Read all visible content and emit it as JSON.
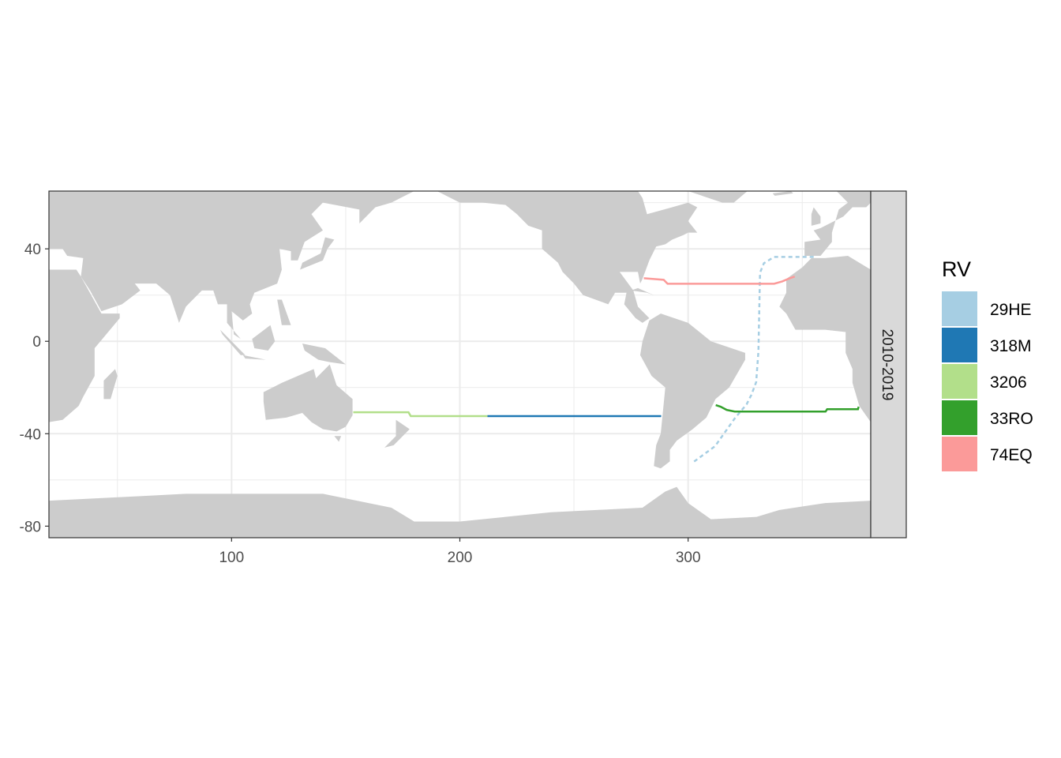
{
  "chart_data": {
    "type": "map",
    "xlim": [
      20,
      380
    ],
    "ylim": [
      -85,
      65
    ],
    "x_ticks": [
      100,
      200,
      300
    ],
    "y_ticks": [
      40,
      0,
      -40,
      -80
    ],
    "x_tick_labels": [
      "100",
      "200",
      "300"
    ],
    "y_tick_labels": [
      "40",
      "0",
      "-40",
      "-80"
    ],
    "grid": true,
    "facet_label": "2010-2019",
    "land_color": "#cccccc",
    "legend": {
      "title": "RV",
      "placement": "right",
      "entries": [
        {
          "label": "29HE",
          "color": "#a6cee3"
        },
        {
          "label": "318M",
          "color": "#1f78b4"
        },
        {
          "label": "3206",
          "color": "#b2df8a"
        },
        {
          "label": "33RO",
          "color": "#33a02c"
        },
        {
          "label": "74EQ",
          "color": "#fb9a99"
        }
      ]
    },
    "series": [
      {
        "name": "29HE",
        "color": "#a6cee3",
        "dashed": true,
        "points": [
          [
            355,
            36.5
          ],
          [
            337.7,
            36.5
          ],
          [
            333.2,
            33.8
          ],
          [
            331.5,
            29.7
          ],
          [
            330.8,
            -4.4
          ],
          [
            329.8,
            -17.7
          ],
          [
            327.7,
            -23.2
          ],
          [
            325.6,
            -27.3
          ],
          [
            320.4,
            -33.4
          ],
          [
            311.8,
            -45.4
          ],
          [
            302.4,
            -52.2
          ]
        ]
      },
      {
        "name": "318M",
        "color": "#1f78b4",
        "points": [
          [
            212.1,
            -32.4
          ],
          [
            288.2,
            -32.4
          ]
        ]
      },
      {
        "name": "3206",
        "color": "#b2df8a",
        "points": [
          [
            153.3,
            -30.7
          ],
          [
            177.5,
            -30.7
          ],
          [
            178.5,
            -32.4
          ],
          [
            212.1,
            -32.4
          ]
        ]
      },
      {
        "name": "33RO",
        "color": "#33a02c",
        "points": [
          [
            312.1,
            -27.6
          ],
          [
            314.2,
            -28.3
          ],
          [
            316.9,
            -29.7
          ],
          [
            320.4,
            -30.4
          ],
          [
            360.2,
            -30.4
          ],
          [
            360.9,
            -29.4
          ],
          [
            374.4,
            -29.4
          ],
          [
            374.7,
            -28.3
          ]
        ]
      },
      {
        "name": "74EQ",
        "color": "#fb9a99",
        "points": [
          [
            280.6,
            27.3
          ],
          [
            289.3,
            26.6
          ],
          [
            291,
            24.9
          ],
          [
            337.7,
            24.9
          ],
          [
            341.2,
            25.9
          ],
          [
            344.6,
            27.3
          ],
          [
            346.7,
            28
          ]
        ]
      }
    ]
  }
}
